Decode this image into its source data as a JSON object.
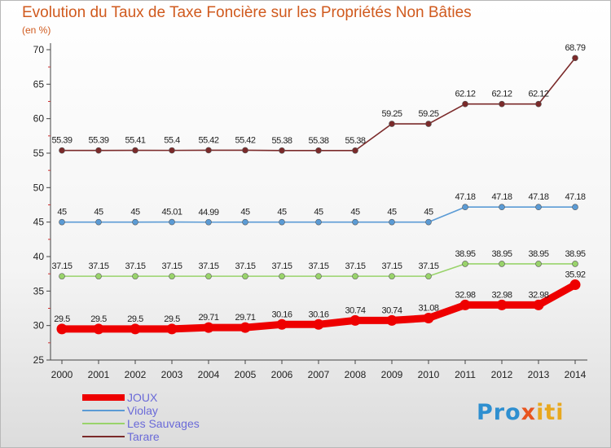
{
  "chart_data": {
    "type": "line",
    "title": "Evolution du Taux de Taxe Foncière sur les Propriétés Non Bâties",
    "subtitle": "(en %)",
    "xlabel": "",
    "ylabel": "",
    "x": [
      "2000",
      "2001",
      "2002",
      "2003",
      "2004",
      "2005",
      "2006",
      "2007",
      "2008",
      "2009",
      "2010",
      "2011",
      "2012",
      "2013",
      "2014"
    ],
    "ylim": [
      25,
      70
    ],
    "yticks": [
      25,
      30,
      35,
      40,
      45,
      50,
      55,
      60,
      65,
      70
    ],
    "grid": false,
    "legend_position": "bottom-left",
    "series": [
      {
        "name": "JOUX",
        "color": "#ee0000",
        "values": [
          29.5,
          29.5,
          29.5,
          29.5,
          29.71,
          29.71,
          30.16,
          30.16,
          30.74,
          30.74,
          31.08,
          32.98,
          32.98,
          32.98,
          35.92
        ],
        "labels": [
          "29.5",
          "29.5",
          "29.5",
          "29.5",
          "29.71",
          "29.71",
          "30.16",
          "30.16",
          "30.74",
          "30.74",
          "31.08",
          "32.98",
          "32.98",
          "32.98",
          "35.92"
        ]
      },
      {
        "name": "Violay",
        "color": "#5b9bd5",
        "values": [
          45,
          45,
          45,
          45.01,
          44.99,
          45,
          45,
          45,
          45,
          45,
          45,
          47.18,
          47.18,
          47.18,
          47.18
        ],
        "labels": [
          "45",
          "45",
          "45",
          "45.01",
          "44.99",
          "45",
          "45",
          "45",
          "45",
          "45",
          "45",
          "47.18",
          "47.18",
          "47.18",
          "47.18"
        ]
      },
      {
        "name": "Les Sauvages",
        "color": "#99d36b",
        "values": [
          37.15,
          37.15,
          37.15,
          37.15,
          37.15,
          37.15,
          37.15,
          37.15,
          37.15,
          37.15,
          37.15,
          38.95,
          38.95,
          38.95,
          38.95
        ],
        "labels": [
          "37.15",
          "37.15",
          "37.15",
          "37.15",
          "37.15",
          "37.15",
          "37.15",
          "37.15",
          "37.15",
          "37.15",
          "37.15",
          "38.95",
          "38.95",
          "38.95",
          "38.95"
        ]
      },
      {
        "name": "Tarare",
        "color": "#7b2a2a",
        "values": [
          55.39,
          55.39,
          55.41,
          55.4,
          55.42,
          55.42,
          55.38,
          55.38,
          55.38,
          59.25,
          59.25,
          62.12,
          62.12,
          62.12,
          68.79
        ],
        "labels": [
          "55.39",
          "55.39",
          "55.41",
          "55.4",
          "55.42",
          "55.42",
          "55.38",
          "55.38",
          "55.38",
          "59.25",
          "59.25",
          "62.12",
          "62.12",
          "62.12",
          "68.79"
        ]
      }
    ]
  },
  "logo": {
    "parts": [
      "Pro",
      "x",
      "iti"
    ]
  }
}
